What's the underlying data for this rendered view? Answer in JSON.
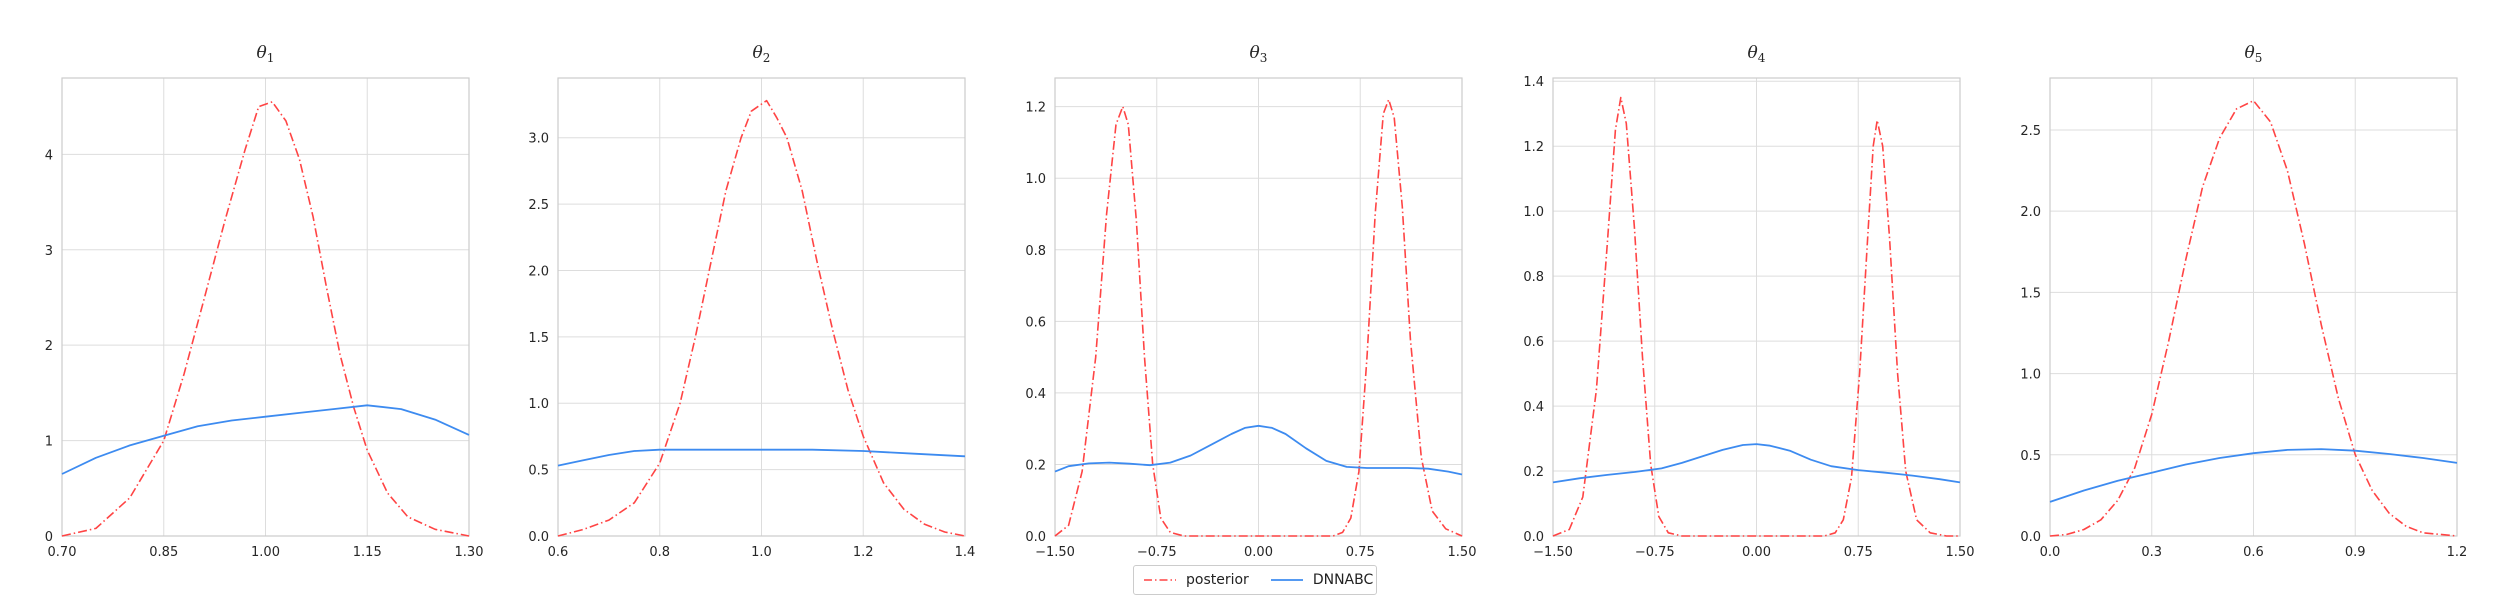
{
  "chart_data": [
    {
      "type": "line",
      "title": "θ",
      "title_sub": "1",
      "xlabel": "",
      "ylabel": "",
      "xlim": [
        0.7,
        1.3
      ],
      "ylim": [
        0,
        4.8
      ],
      "xticks": [
        0.7,
        0.85,
        1.0,
        1.15,
        1.3
      ],
      "xtick_labels": [
        "0.70",
        "0.85",
        "1.00",
        "1.15",
        "1.30"
      ],
      "yticks": [
        0,
        1,
        2,
        3,
        4
      ],
      "ytick_labels": [
        "0",
        "1",
        "2",
        "3",
        "4"
      ],
      "grid": true,
      "series": [
        {
          "name": "posterior",
          "points": [
            [
              0.7,
              0.0
            ],
            [
              0.75,
              0.08
            ],
            [
              0.8,
              0.4
            ],
            [
              0.85,
              1.0
            ],
            [
              0.88,
              1.7
            ],
            [
              0.91,
              2.5
            ],
            [
              0.94,
              3.3
            ],
            [
              0.97,
              4.05
            ],
            [
              0.99,
              4.5
            ],
            [
              1.01,
              4.55
            ],
            [
              1.03,
              4.35
            ],
            [
              1.05,
              3.95
            ],
            [
              1.07,
              3.35
            ],
            [
              1.09,
              2.6
            ],
            [
              1.11,
              1.9
            ],
            [
              1.13,
              1.35
            ],
            [
              1.15,
              0.9
            ],
            [
              1.18,
              0.45
            ],
            [
              1.21,
              0.2
            ],
            [
              1.25,
              0.07
            ],
            [
              1.3,
              0.0
            ]
          ]
        },
        {
          "name": "DNNABC",
          "points": [
            [
              0.7,
              0.65
            ],
            [
              0.75,
              0.82
            ],
            [
              0.8,
              0.95
            ],
            [
              0.85,
              1.05
            ],
            [
              0.9,
              1.15
            ],
            [
              0.95,
              1.21
            ],
            [
              1.0,
              1.25
            ],
            [
              1.05,
              1.29
            ],
            [
              1.1,
              1.33
            ],
            [
              1.15,
              1.37
            ],
            [
              1.2,
              1.33
            ],
            [
              1.25,
              1.22
            ],
            [
              1.3,
              1.06
            ]
          ]
        }
      ]
    },
    {
      "type": "line",
      "title": "θ",
      "title_sub": "2",
      "xlabel": "",
      "ylabel": "",
      "xlim": [
        0.6,
        1.4
      ],
      "ylim": [
        0,
        3.45
      ],
      "xticks": [
        0.6,
        0.8,
        1.0,
        1.2,
        1.4
      ],
      "xtick_labels": [
        "0.6",
        "0.8",
        "1.0",
        "1.2",
        "1.4"
      ],
      "yticks": [
        0,
        0.5,
        1.0,
        1.5,
        2.0,
        2.5,
        3.0
      ],
      "ytick_labels": [
        "0.0",
        "0.5",
        "1.0",
        "1.5",
        "2.0",
        "2.5",
        "3.0"
      ],
      "grid": true,
      "series": [
        {
          "name": "posterior",
          "points": [
            [
              0.6,
              0.0
            ],
            [
              0.65,
              0.05
            ],
            [
              0.7,
              0.12
            ],
            [
              0.75,
              0.25
            ],
            [
              0.8,
              0.55
            ],
            [
              0.84,
              1.0
            ],
            [
              0.87,
              1.5
            ],
            [
              0.9,
              2.05
            ],
            [
              0.93,
              2.6
            ],
            [
              0.96,
              3.0
            ],
            [
              0.98,
              3.2
            ],
            [
              1.01,
              3.28
            ],
            [
              1.03,
              3.15
            ],
            [
              1.05,
              3.0
            ],
            [
              1.08,
              2.6
            ],
            [
              1.11,
              2.05
            ],
            [
              1.14,
              1.55
            ],
            [
              1.17,
              1.1
            ],
            [
              1.2,
              0.75
            ],
            [
              1.24,
              0.4
            ],
            [
              1.28,
              0.2
            ],
            [
              1.32,
              0.09
            ],
            [
              1.36,
              0.03
            ],
            [
              1.4,
              0.0
            ]
          ]
        },
        {
          "name": "DNNABC",
          "points": [
            [
              0.6,
              0.53
            ],
            [
              0.65,
              0.57
            ],
            [
              0.7,
              0.61
            ],
            [
              0.75,
              0.64
            ],
            [
              0.8,
              0.65
            ],
            [
              0.9,
              0.65
            ],
            [
              1.0,
              0.65
            ],
            [
              1.1,
              0.65
            ],
            [
              1.2,
              0.64
            ],
            [
              1.3,
              0.62
            ],
            [
              1.4,
              0.6
            ]
          ]
        }
      ]
    },
    {
      "type": "line",
      "title": "θ",
      "title_sub": "3",
      "xlabel": "",
      "ylabel": "",
      "xlim": [
        -1.5,
        1.5
      ],
      "ylim": [
        0,
        1.28
      ],
      "xticks": [
        -1.5,
        -0.75,
        0,
        0.75,
        1.5
      ],
      "xtick_labels": [
        "−1.50",
        "−0.75",
        "0.00",
        "0.75",
        "1.50"
      ],
      "yticks": [
        0,
        0.2,
        0.4,
        0.6,
        0.8,
        1.0,
        1.2
      ],
      "ytick_labels": [
        "0.0",
        "0.2",
        "0.4",
        "0.6",
        "0.8",
        "1.0",
        "1.2"
      ],
      "grid": true,
      "series": [
        {
          "name": "posterior",
          "points": [
            [
              -1.5,
              0.0
            ],
            [
              -1.4,
              0.03
            ],
            [
              -1.3,
              0.18
            ],
            [
              -1.2,
              0.5
            ],
            [
              -1.12,
              0.9
            ],
            [
              -1.05,
              1.15
            ],
            [
              -1.0,
              1.2
            ],
            [
              -0.96,
              1.15
            ],
            [
              -0.9,
              0.88
            ],
            [
              -0.84,
              0.5
            ],
            [
              -0.78,
              0.2
            ],
            [
              -0.72,
              0.05
            ],
            [
              -0.65,
              0.01
            ],
            [
              -0.55,
              0.0
            ],
            [
              0.55,
              0.0
            ],
            [
              0.62,
              0.01
            ],
            [
              0.68,
              0.05
            ],
            [
              0.74,
              0.18
            ],
            [
              0.8,
              0.5
            ],
            [
              0.86,
              0.9
            ],
            [
              0.92,
              1.18
            ],
            [
              0.96,
              1.22
            ],
            [
              1.0,
              1.17
            ],
            [
              1.06,
              0.92
            ],
            [
              1.12,
              0.55
            ],
            [
              1.2,
              0.22
            ],
            [
              1.28,
              0.07
            ],
            [
              1.38,
              0.02
            ],
            [
              1.5,
              0.0
            ]
          ]
        },
        {
          "name": "DNNABC",
          "points": [
            [
              -1.5,
              0.18
            ],
            [
              -1.4,
              0.195
            ],
            [
              -1.25,
              0.203
            ],
            [
              -1.1,
              0.205
            ],
            [
              -0.95,
              0.202
            ],
            [
              -0.8,
              0.198
            ],
            [
              -0.65,
              0.205
            ],
            [
              -0.5,
              0.225
            ],
            [
              -0.35,
              0.255
            ],
            [
              -0.2,
              0.285
            ],
            [
              -0.1,
              0.302
            ],
            [
              0.0,
              0.308
            ],
            [
              0.1,
              0.302
            ],
            [
              0.2,
              0.285
            ],
            [
              0.35,
              0.245
            ],
            [
              0.5,
              0.21
            ],
            [
              0.65,
              0.193
            ],
            [
              0.8,
              0.19
            ],
            [
              0.95,
              0.19
            ],
            [
              1.1,
              0.19
            ],
            [
              1.25,
              0.188
            ],
            [
              1.4,
              0.18
            ],
            [
              1.5,
              0.172
            ]
          ]
        }
      ]
    },
    {
      "type": "line",
      "title": "θ",
      "title_sub": "4",
      "xlabel": "",
      "ylabel": "",
      "xlim": [
        -1.5,
        1.5
      ],
      "ylim": [
        0,
        1.41
      ],
      "xticks": [
        -1.5,
        -0.75,
        0,
        0.75,
        1.5
      ],
      "xtick_labels": [
        "−1.50",
        "−0.75",
        "0.00",
        "0.75",
        "1.50"
      ],
      "yticks": [
        0,
        0.2,
        0.4,
        0.6,
        0.8,
        1.0,
        1.2,
        1.4
      ],
      "ytick_labels": [
        "0.0",
        "0.2",
        "0.4",
        "0.6",
        "0.8",
        "1.0",
        "1.2",
        "1.4"
      ],
      "grid": true,
      "series": [
        {
          "name": "posterior",
          "points": [
            [
              -1.5,
              0.0
            ],
            [
              -1.38,
              0.02
            ],
            [
              -1.28,
              0.12
            ],
            [
              -1.18,
              0.45
            ],
            [
              -1.1,
              0.9
            ],
            [
              -1.04,
              1.25
            ],
            [
              -1.0,
              1.35
            ],
            [
              -0.96,
              1.27
            ],
            [
              -0.9,
              0.95
            ],
            [
              -0.84,
              0.55
            ],
            [
              -0.78,
              0.22
            ],
            [
              -0.72,
              0.06
            ],
            [
              -0.65,
              0.01
            ],
            [
              -0.55,
              0.0
            ],
            [
              0.5,
              0.0
            ],
            [
              0.58,
              0.01
            ],
            [
              0.64,
              0.05
            ],
            [
              0.7,
              0.18
            ],
            [
              0.76,
              0.5
            ],
            [
              0.82,
              0.92
            ],
            [
              0.86,
              1.2
            ],
            [
              0.89,
              1.28
            ],
            [
              0.93,
              1.2
            ],
            [
              0.98,
              0.92
            ],
            [
              1.04,
              0.5
            ],
            [
              1.1,
              0.2
            ],
            [
              1.18,
              0.05
            ],
            [
              1.28,
              0.01
            ],
            [
              1.4,
              0.0
            ],
            [
              1.5,
              0.0
            ]
          ]
        },
        {
          "name": "DNNABC",
          "points": [
            [
              -1.5,
              0.165
            ],
            [
              -1.3,
              0.178
            ],
            [
              -1.1,
              0.188
            ],
            [
              -0.9,
              0.197
            ],
            [
              -0.7,
              0.208
            ],
            [
              -0.55,
              0.225
            ],
            [
              -0.4,
              0.245
            ],
            [
              -0.25,
              0.265
            ],
            [
              -0.1,
              0.28
            ],
            [
              0.0,
              0.283
            ],
            [
              0.1,
              0.278
            ],
            [
              0.25,
              0.262
            ],
            [
              0.4,
              0.235
            ],
            [
              0.55,
              0.215
            ],
            [
              0.75,
              0.203
            ],
            [
              0.95,
              0.195
            ],
            [
              1.15,
              0.186
            ],
            [
              1.35,
              0.175
            ],
            [
              1.5,
              0.165
            ]
          ]
        }
      ]
    },
    {
      "type": "line",
      "title": "θ",
      "title_sub": "5",
      "xlabel": "",
      "ylabel": "",
      "xlim": [
        0.0,
        1.2
      ],
      "ylim": [
        0,
        2.82
      ],
      "xticks": [
        0.0,
        0.3,
        0.6,
        0.9,
        1.2
      ],
      "xtick_labels": [
        "0.0",
        "0.3",
        "0.6",
        "0.9",
        "1.2"
      ],
      "yticks": [
        0,
        0.5,
        1.0,
        1.5,
        2.0,
        2.5
      ],
      "ytick_labels": [
        "0.0",
        "0.5",
        "1.0",
        "1.5",
        "2.0",
        "2.5"
      ],
      "grid": true,
      "series": [
        {
          "name": "posterior",
          "points": [
            [
              0.0,
              0.0
            ],
            [
              0.05,
              0.01
            ],
            [
              0.1,
              0.04
            ],
            [
              0.15,
              0.1
            ],
            [
              0.2,
              0.22
            ],
            [
              0.25,
              0.42
            ],
            [
              0.3,
              0.75
            ],
            [
              0.35,
              1.2
            ],
            [
              0.4,
              1.7
            ],
            [
              0.45,
              2.15
            ],
            [
              0.5,
              2.45
            ],
            [
              0.55,
              2.63
            ],
            [
              0.6,
              2.68
            ],
            [
              0.65,
              2.55
            ],
            [
              0.7,
              2.25
            ],
            [
              0.75,
              1.8
            ],
            [
              0.8,
              1.3
            ],
            [
              0.85,
              0.85
            ],
            [
              0.9,
              0.5
            ],
            [
              0.95,
              0.28
            ],
            [
              1.0,
              0.14
            ],
            [
              1.05,
              0.06
            ],
            [
              1.1,
              0.02
            ],
            [
              1.2,
              0.0
            ]
          ]
        },
        {
          "name": "DNNABC",
          "points": [
            [
              0.0,
              0.21
            ],
            [
              0.1,
              0.28
            ],
            [
              0.2,
              0.34
            ],
            [
              0.3,
              0.39
            ],
            [
              0.4,
              0.44
            ],
            [
              0.5,
              0.48
            ],
            [
              0.6,
              0.51
            ],
            [
              0.7,
              0.53
            ],
            [
              0.8,
              0.535
            ],
            [
              0.9,
              0.525
            ],
            [
              1.0,
              0.505
            ],
            [
              1.1,
              0.48
            ],
            [
              1.2,
              0.45
            ]
          ]
        }
      ]
    }
  ],
  "legend": {
    "position": "bottom-center",
    "items": [
      {
        "label": "posterior",
        "color": "#ff4444",
        "style": "dashdot"
      },
      {
        "label": "DNNABC",
        "color": "#3d8bf0",
        "style": "solid"
      }
    ]
  },
  "colors": {
    "posterior": "#ff4444",
    "dnnabc": "#3d8bf0",
    "grid": "#dddddd",
    "axes": "#cccccc"
  }
}
